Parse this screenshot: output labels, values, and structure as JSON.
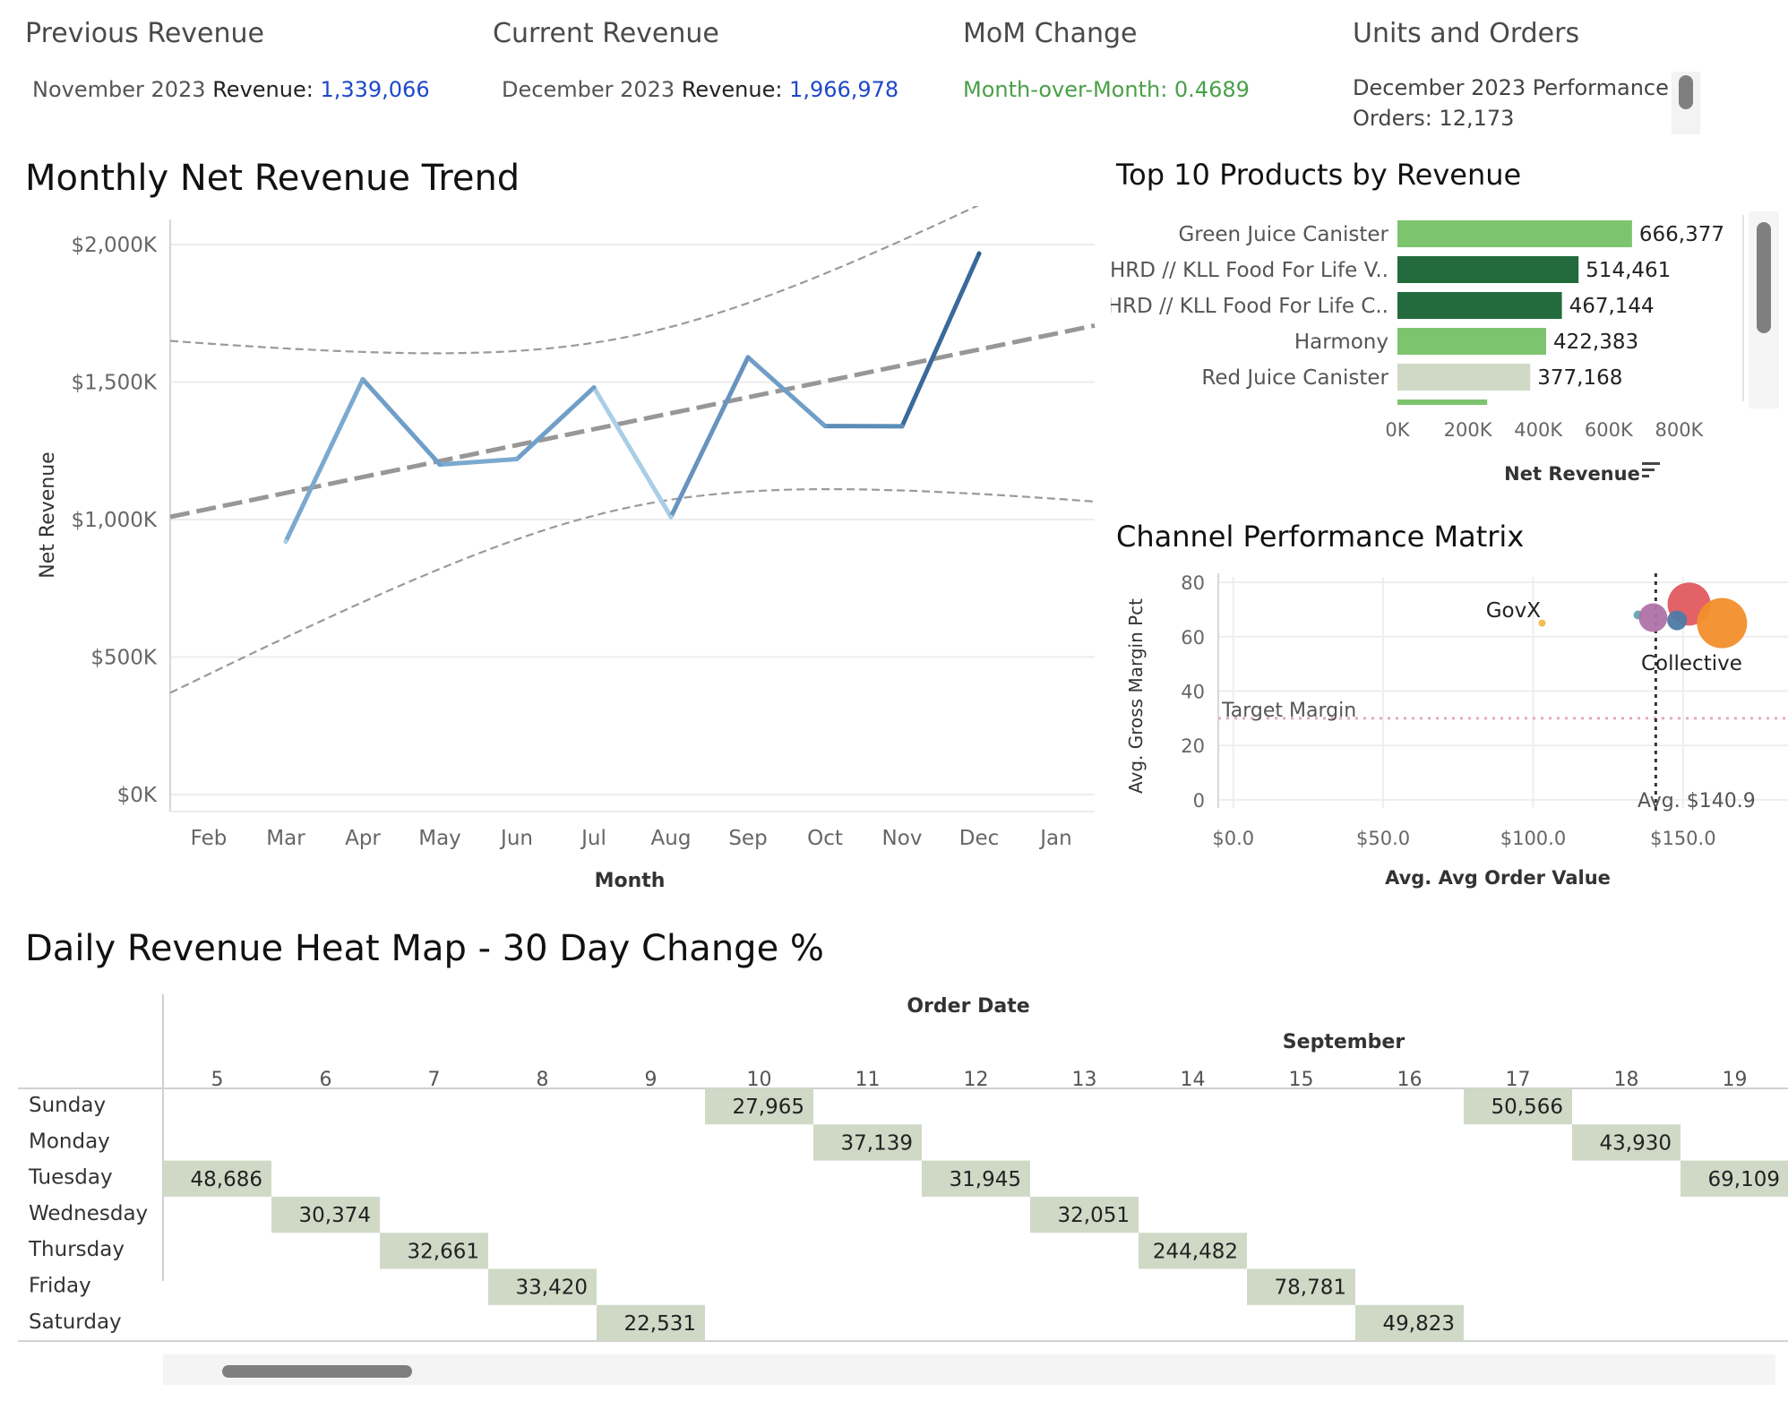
{
  "kpis": {
    "previous": {
      "title": "Previous Revenue",
      "period": "November 2023",
      "label": "Revenue: ",
      "value": "1,339,066"
    },
    "current": {
      "title": "Current Revenue",
      "period": "December 2023",
      "label": "Revenue: ",
      "value": "1,966,978"
    },
    "mom": {
      "title": "MoM Change",
      "text": "Month-over-Month: 0.4689"
    },
    "units": {
      "title": "Units and Orders",
      "line1": "December 2023 Performance",
      "line2": "Orders: 12,173"
    }
  },
  "colors": {
    "trend_line": "#5b8db8",
    "trend_start": "#a8cfe6",
    "trend_end": "#2d5d8f",
    "green_light": "#7dc46e",
    "green_dark": "#236b3d",
    "gray_bar": "#d0d9c6",
    "heat_cell": "#d0d9c6",
    "text_blue": "#1f48c9",
    "text_green": "#4aa048"
  },
  "chart_data": [
    {
      "id": "trend",
      "type": "line",
      "title": "Monthly Net Revenue Trend",
      "xlabel": "Month",
      "ylabel": "Net Revenue",
      "x_ticks": [
        "Feb",
        "Mar",
        "Apr",
        "May",
        "Jun",
        "Jul",
        "Aug",
        "Sep",
        "Oct",
        "Nov",
        "Dec",
        "Jan"
      ],
      "y_ticks": [
        "$0K",
        "$500K",
        "$1,000K",
        "$1,500K",
        "$2,000K"
      ],
      "ylim": [
        0,
        2000000
      ],
      "series": [
        {
          "categories": [
            "Mar",
            "Apr",
            "May",
            "Jun",
            "Jul",
            "Aug",
            "Sep",
            "Oct",
            "Nov",
            "Dec"
          ],
          "values": [
            920000,
            1510000,
            1200000,
            1220000,
            1480000,
            1010000,
            1590000,
            1340000,
            1339066,
            1966978
          ]
        }
      ],
      "trend_line": {
        "style": "dashed",
        "start": 1050000,
        "end": 1680000
      },
      "confidence_band": {
        "style": "dashed"
      },
      "grid": true
    },
    {
      "id": "top_products",
      "type": "bar",
      "orientation": "horizontal",
      "title": "Top 10 Products by Revenue",
      "xlabel": "Net Revenue",
      "x_ticks": [
        "0K",
        "200K",
        "400K",
        "600K",
        "800K"
      ],
      "xlim": [
        0,
        1000000
      ],
      "categories": [
        "Green Juice Canister",
        "HRD // KLL Food For Life V..",
        "HRD // KLL Food For Life C..",
        "Harmony",
        "Red Juice Canister"
      ],
      "values": [
        666377,
        514461,
        467144,
        422383,
        377168
      ],
      "value_labels": [
        "666,377",
        "514,461",
        "467,144",
        "422,383",
        "377,168"
      ],
      "bar_colors": [
        "#7dc46e",
        "#236b3d",
        "#236b3d",
        "#7dc46e",
        "#d0d9c6"
      ],
      "partial_next_bar": {
        "value": 255000,
        "color": "#7dc46e"
      }
    },
    {
      "id": "channel_matrix",
      "type": "scatter",
      "title": "Channel Performance Matrix",
      "xlabel": "Avg. Avg Order Value",
      "ylabel": "Avg. Gross Margin Pct",
      "x_ticks": [
        "$0.0",
        "$50.0",
        "$100.0",
        "$150.0"
      ],
      "y_ticks": [
        "0",
        "20",
        "40",
        "60",
        "80"
      ],
      "xlim": [
        -5,
        185
      ],
      "ylim": [
        -3,
        82
      ],
      "points": [
        {
          "x": 103,
          "y": 65,
          "size": 4,
          "color": "#f2b84b"
        },
        {
          "x": 135,
          "y": 68,
          "size": 5,
          "color": "#5fa7b0"
        },
        {
          "x": 140,
          "y": 67,
          "size": 16,
          "color": "#b072a8"
        },
        {
          "x": 152,
          "y": 72,
          "size": 24,
          "color": "#e05a5f"
        },
        {
          "x": 148,
          "y": 66,
          "size": 11,
          "color": "#4e79a7"
        },
        {
          "x": 163,
          "y": 65,
          "size": 28,
          "color": "#f28e2b"
        }
      ],
      "annotations": {
        "gov": "GovX",
        "collective": "Collective",
        "target_label": "Target Margin",
        "avg_label": "Avg. $140.9"
      },
      "target_margin": 30,
      "avg_line_x": 140.9
    },
    {
      "id": "heatmap",
      "type": "heatmap",
      "title": "Daily Revenue Heat Map - 30 Day Change %",
      "header": "Order Date",
      "month": "September",
      "columns": [
        "5",
        "6",
        "7",
        "8",
        "9",
        "10",
        "11",
        "12",
        "13",
        "14",
        "15",
        "16",
        "17",
        "18",
        "19"
      ],
      "rows": [
        "Sunday",
        "Monday",
        "Tuesday",
        "Wednesday",
        "Thursday",
        "Friday",
        "Saturday"
      ],
      "cells": [
        {
          "row": 2,
          "col": 0,
          "value": "48,686"
        },
        {
          "row": 3,
          "col": 1,
          "value": "30,374"
        },
        {
          "row": 4,
          "col": 2,
          "value": "32,661"
        },
        {
          "row": 5,
          "col": 3,
          "value": "33,420"
        },
        {
          "row": 6,
          "col": 4,
          "value": "22,531"
        },
        {
          "row": 0,
          "col": 5,
          "value": "27,965"
        },
        {
          "row": 1,
          "col": 6,
          "value": "37,139"
        },
        {
          "row": 2,
          "col": 7,
          "value": "31,945"
        },
        {
          "row": 3,
          "col": 8,
          "value": "32,051"
        },
        {
          "row": 4,
          "col": 9,
          "value": "244,482"
        },
        {
          "row": 5,
          "col": 10,
          "value": "78,781"
        },
        {
          "row": 6,
          "col": 11,
          "value": "49,823"
        },
        {
          "row": 0,
          "col": 12,
          "value": "50,566"
        },
        {
          "row": 1,
          "col": 13,
          "value": "43,930"
        },
        {
          "row": 2,
          "col": 14,
          "value": "69,109"
        }
      ]
    }
  ]
}
